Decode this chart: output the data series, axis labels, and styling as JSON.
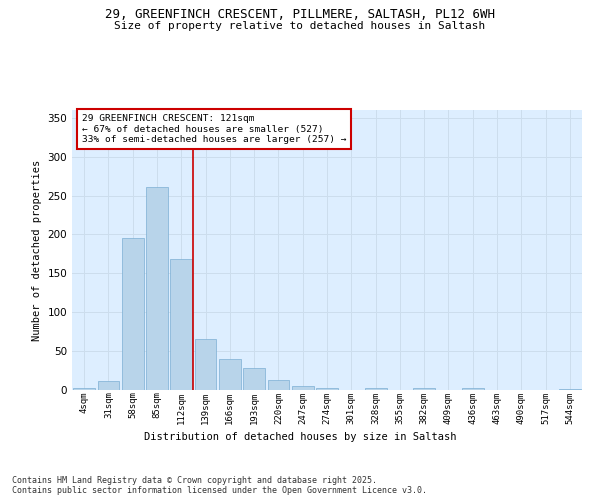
{
  "title_line1": "29, GREENFINCH CRESCENT, PILLMERE, SALTASH, PL12 6WH",
  "title_line2": "Size of property relative to detached houses in Saltash",
  "xlabel": "Distribution of detached houses by size in Saltash",
  "ylabel": "Number of detached properties",
  "bin_labels": [
    "4sqm",
    "31sqm",
    "58sqm",
    "85sqm",
    "112sqm",
    "139sqm",
    "166sqm",
    "193sqm",
    "220sqm",
    "247sqm",
    "274sqm",
    "301sqm",
    "328sqm",
    "355sqm",
    "382sqm",
    "409sqm",
    "436sqm",
    "463sqm",
    "490sqm",
    "517sqm",
    "544sqm"
  ],
  "bar_heights": [
    2,
    11,
    195,
    261,
    168,
    65,
    40,
    28,
    13,
    5,
    3,
    0,
    3,
    0,
    2,
    0,
    2,
    0,
    0,
    0,
    1
  ],
  "bar_color": "#b8d4ea",
  "bar_edgecolor": "#7bafd4",
  "annotation_line1": "29 GREENFINCH CRESCENT: 121sqm",
  "annotation_line2": "← 67% of detached houses are smaller (527)",
  "annotation_line3": "33% of semi-detached houses are larger (257) →",
  "annotation_box_color": "#ffffff",
  "annotation_box_edgecolor": "#cc0000",
  "vline_color": "#cc0000",
  "grid_color": "#ccdded",
  "background_color": "#ddeeff",
  "ylim": [
    0,
    360
  ],
  "yticks": [
    0,
    50,
    100,
    150,
    200,
    250,
    300,
    350
  ],
  "footer_line1": "Contains HM Land Registry data © Crown copyright and database right 2025.",
  "footer_line2": "Contains public sector information licensed under the Open Government Licence v3.0.",
  "vline_index": 4.5
}
